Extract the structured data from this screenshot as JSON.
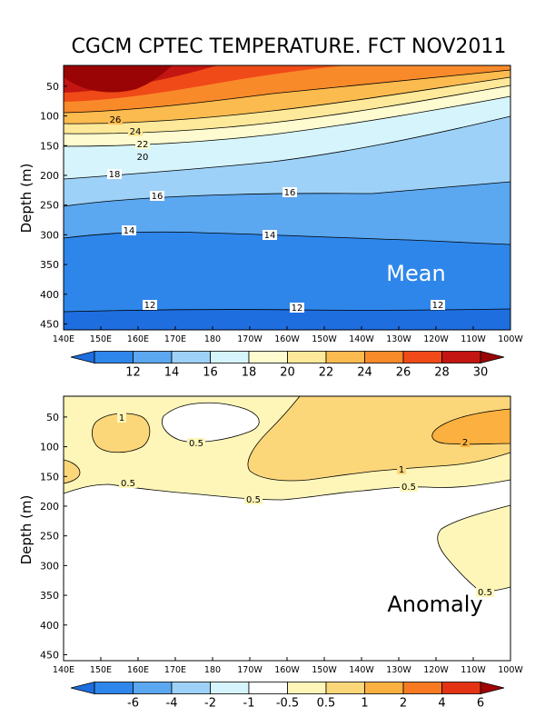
{
  "title": "CGCM CPTEC TEMPERATURE. FCT NOV2011",
  "chart_data": [
    {
      "type": "heatmap",
      "name": "mean",
      "panel_label": "Mean",
      "ylabel": "Depth (m)",
      "xticks": [
        "140E",
        "150E",
        "160E",
        "170E",
        "180",
        "170W",
        "160W",
        "150W",
        "140W",
        "130W",
        "120W",
        "110W",
        "100W"
      ],
      "yticks": [
        "50",
        "100",
        "150",
        "200",
        "250",
        "300",
        "350",
        "400",
        "450"
      ],
      "ylim": [
        460,
        15
      ],
      "colorbar": {
        "labels": [
          "12",
          "14",
          "16",
          "18",
          "20",
          "22",
          "24",
          "26",
          "28",
          "30"
        ],
        "colors": [
          "#1e6ee0",
          "#2e86ea",
          "#5ba7f0",
          "#9dd1f8",
          "#d6f4fb",
          "#fefbd0",
          "#fde999",
          "#fbbb4f",
          "#f98a2a",
          "#ef4a17",
          "#c31511",
          "#9b0405"
        ]
      },
      "contour_labels": [
        {
          "text": "26",
          "x": "150E",
          "depth": 97
        },
        {
          "text": "24",
          "x": "150E",
          "depth": 112
        },
        {
          "text": "22",
          "x": "150E",
          "depth": 130
        },
        {
          "text": "20",
          "x": "150E",
          "depth": 145
        },
        {
          "text": "18",
          "x": "150E",
          "depth": 185
        },
        {
          "text": "16",
          "x": "160E",
          "depth": 233
        },
        {
          "text": "16",
          "x": "160W",
          "depth": 218
        },
        {
          "text": "14",
          "x": "160E",
          "depth": 283
        },
        {
          "text": "14",
          "x": "170W",
          "depth": 297
        },
        {
          "text": "12",
          "x": "160E",
          "depth": 419
        },
        {
          "text": "12",
          "x": "160W",
          "depth": 422
        },
        {
          "text": "12",
          "x": "120W",
          "depth": 420
        }
      ]
    },
    {
      "type": "heatmap",
      "name": "anomaly",
      "panel_label": "Anomaly",
      "ylabel": "Depth (m)",
      "xticks": [
        "140E",
        "150E",
        "160E",
        "170E",
        "180",
        "170W",
        "160W",
        "150W",
        "140W",
        "130W",
        "120W",
        "110W",
        "100W"
      ],
      "yticks": [
        "50",
        "100",
        "150",
        "200",
        "250",
        "300",
        "350",
        "400",
        "450"
      ],
      "ylim": [
        460,
        15
      ],
      "colorbar": {
        "labels": [
          "-6",
          "-4",
          "-2",
          "-1",
          "-0.5",
          "0.5",
          "1",
          "2",
          "4",
          "6"
        ],
        "colors": [
          "#1e6ee0",
          "#2e86ea",
          "#5ba7f0",
          "#9dd1f8",
          "#d6f4fb",
          "#ffffff",
          "#fef6b8",
          "#fcd77a",
          "#fbb03f",
          "#f77a22",
          "#e33312",
          "#a00405"
        ]
      },
      "contour_labels": [
        {
          "text": "1",
          "x": "155E",
          "depth": 47
        },
        {
          "text": "0.5",
          "x": "173E",
          "depth": 85
        },
        {
          "text": "0.5",
          "x": "155E",
          "depth": 155
        },
        {
          "text": "0.5",
          "x": "168W",
          "depth": 178
        },
        {
          "text": "1",
          "x": "134W",
          "depth": 128
        },
        {
          "text": "0.5",
          "x": "134W",
          "depth": 160
        },
        {
          "text": "2",
          "x": "115W",
          "depth": 83
        },
        {
          "text": "0.5",
          "x": "110W",
          "depth": 340
        }
      ]
    }
  ]
}
